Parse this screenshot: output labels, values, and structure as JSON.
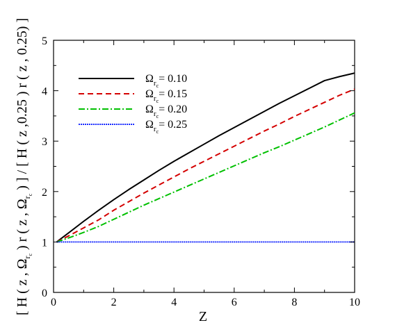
{
  "chart_data": {
    "type": "line",
    "title": "",
    "xlabel": "Z",
    "ylabel_parts": {
      "p1": "[ H ( z , ",
      "omega": "Ω",
      "sub_r": "r",
      "subsub_c": "c",
      "p2": " ) r ( z , ",
      "p3": " ) ] / [ H ( z ,0.25 ) r ( z , 0.25) ]"
    },
    "xlim": [
      0,
      10
    ],
    "ylim": [
      0,
      5
    ],
    "xticks": [
      "0",
      "2",
      "4",
      "6",
      "8",
      "10"
    ],
    "yticks": [
      "0",
      "1",
      "2",
      "3",
      "4",
      "5"
    ],
    "grid": false,
    "legend_position": "top-left",
    "x": [
      0.1,
      0.5,
      1,
      1.5,
      2,
      2.5,
      3,
      3.5,
      4,
      4.5,
      5,
      5.5,
      6,
      6.5,
      7,
      7.5,
      8,
      8.5,
      9,
      9.5,
      10
    ],
    "series": [
      {
        "name_prefix": "Ω",
        "name_sub": "r",
        "name_subsub": "c",
        "name_value": "= 0.10",
        "color": "#000000",
        "dash": "",
        "width": 2,
        "values": [
          1.0,
          1.18,
          1.41,
          1.63,
          1.84,
          2.04,
          2.23,
          2.42,
          2.6,
          2.77,
          2.94,
          3.11,
          3.27,
          3.43,
          3.59,
          3.75,
          3.9,
          4.05,
          4.2,
          4.28,
          4.35
        ]
      },
      {
        "name_prefix": "Ω",
        "name_sub": "r",
        "name_subsub": "c",
        "name_value": "= 0.15",
        "color": "#d40000",
        "dash": "8,5",
        "width": 2,
        "values": [
          1.0,
          1.12,
          1.28,
          1.44,
          1.63,
          1.8,
          1.97,
          2.13,
          2.29,
          2.45,
          2.6,
          2.75,
          2.9,
          3.05,
          3.2,
          3.34,
          3.49,
          3.63,
          3.77,
          3.91,
          4.03
        ]
      },
      {
        "name_prefix": "Ω",
        "name_sub": "r",
        "name_subsub": "c",
        "name_value": "= 0.20",
        "color": "#00c000",
        "dash": "9,3,2,3",
        "width": 2,
        "values": [
          1.0,
          1.08,
          1.19,
          1.31,
          1.45,
          1.59,
          1.73,
          1.86,
          1.99,
          2.12,
          2.25,
          2.38,
          2.51,
          2.64,
          2.77,
          2.89,
          3.02,
          3.15,
          3.28,
          3.42,
          3.56
        ]
      },
      {
        "name_prefix": "Ω",
        "name_sub": "r",
        "name_subsub": "c",
        "name_value": "= 0.25",
        "color": "#1a2cff",
        "dash": "2,1",
        "width": 2,
        "values": [
          1.0,
          1.0,
          1.0,
          1.0,
          1.0,
          1.0,
          1.0,
          1.0,
          1.0,
          1.0,
          1.0,
          1.0,
          1.0,
          1.0,
          1.0,
          1.0,
          1.0,
          1.0,
          1.0,
          1.0,
          1.0
        ]
      }
    ]
  }
}
